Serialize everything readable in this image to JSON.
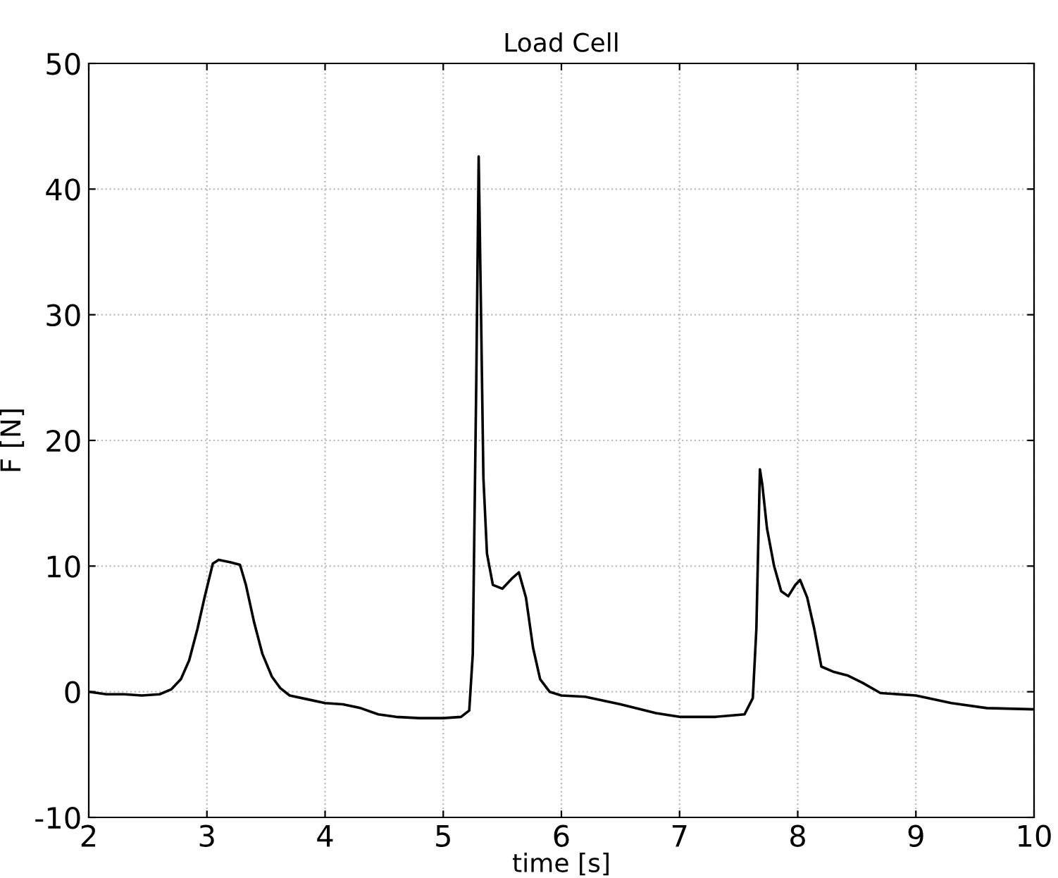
{
  "chart_data": {
    "type": "line",
    "title": "Load Cell",
    "xlabel": "time [s]",
    "ylabel": "F [N]",
    "x": [
      2.0,
      2.15,
      2.3,
      2.45,
      2.6,
      2.7,
      2.78,
      2.85,
      2.92,
      2.98,
      3.05,
      3.1,
      3.15,
      3.2,
      3.28,
      3.33,
      3.4,
      3.47,
      3.55,
      3.62,
      3.7,
      3.85,
      4.0,
      4.15,
      4.3,
      4.45,
      4.6,
      4.8,
      5.0,
      5.15,
      5.22,
      5.25,
      5.28,
      5.3,
      5.32,
      5.34,
      5.37,
      5.42,
      5.5,
      5.58,
      5.64,
      5.7,
      5.76,
      5.82,
      5.9,
      6.0,
      6.2,
      6.5,
      6.8,
      7.0,
      7.3,
      7.55,
      7.62,
      7.65,
      7.68,
      7.7,
      7.74,
      7.8,
      7.86,
      7.92,
      7.98,
      8.02,
      8.08,
      8.14,
      8.2,
      8.3,
      8.42,
      8.55,
      8.7,
      9.0,
      9.3,
      9.6,
      10.0
    ],
    "series": [
      {
        "color": "#000000",
        "values": [
          0.0,
          -0.2,
          -0.2,
          -0.3,
          -0.2,
          0.2,
          1.0,
          2.5,
          5.0,
          7.5,
          10.2,
          10.5,
          10.4,
          10.3,
          10.1,
          8.5,
          5.5,
          3.0,
          1.2,
          0.3,
          -0.3,
          -0.6,
          -0.9,
          -1.0,
          -1.3,
          -1.8,
          -2.0,
          -2.1,
          -2.1,
          -2.0,
          -1.5,
          3.0,
          25.0,
          42.6,
          30.0,
          17.0,
          11.0,
          8.5,
          8.2,
          9.0,
          9.5,
          7.5,
          3.5,
          1.0,
          0.0,
          -0.3,
          -0.4,
          -1.0,
          -1.7,
          -2.0,
          -2.0,
          -1.8,
          -0.5,
          5.0,
          17.7,
          16.5,
          13.0,
          10.0,
          8.0,
          7.6,
          8.5,
          8.9,
          7.5,
          5.0,
          2.0,
          1.6,
          1.3,
          0.7,
          -0.1,
          -0.3,
          -0.9,
          -1.3,
          -1.4
        ]
      }
    ],
    "xlim": [
      2,
      10
    ],
    "ylim": [
      -10,
      50
    ],
    "xticks": [
      2,
      3,
      4,
      5,
      6,
      7,
      8,
      9,
      10
    ],
    "yticks": [
      -10,
      0,
      10,
      20,
      30,
      40,
      50
    ],
    "grid": true,
    "line_style": "solid"
  }
}
